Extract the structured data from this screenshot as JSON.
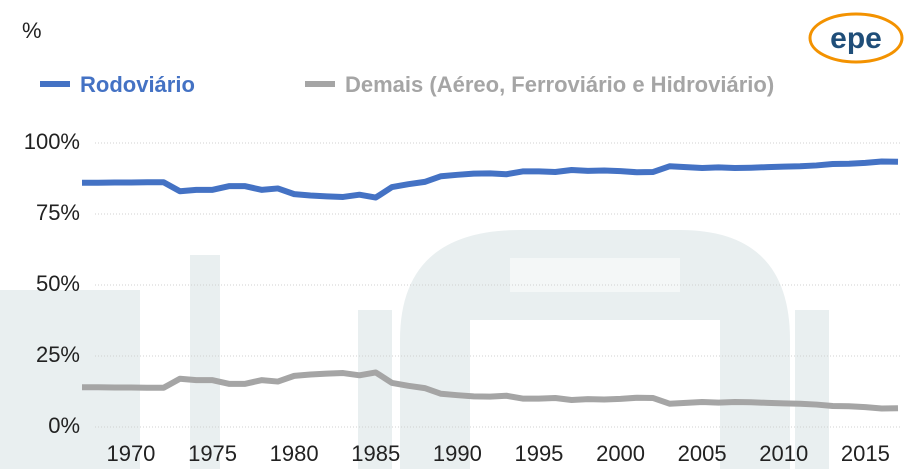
{
  "chart_data": {
    "type": "line",
    "y_unit": "%",
    "logo": "epe",
    "x": [
      1967,
      1968,
      1969,
      1970,
      1971,
      1972,
      1973,
      1974,
      1975,
      1976,
      1977,
      1978,
      1979,
      1980,
      1981,
      1982,
      1983,
      1984,
      1985,
      1986,
      1987,
      1988,
      1989,
      1990,
      1991,
      1992,
      1993,
      1994,
      1995,
      1996,
      1997,
      1998,
      1999,
      2000,
      2001,
      2002,
      2003,
      2004,
      2005,
      2006,
      2007,
      2008,
      2009,
      2010,
      2011,
      2012,
      2013,
      2014,
      2015,
      2016,
      2017
    ],
    "series": [
      {
        "name": "Rodoviário",
        "color": "#4472c4",
        "values": [
          86,
          86,
          86.1,
          86.1,
          86.2,
          86.2,
          83,
          83.5,
          83.5,
          84.8,
          84.8,
          83.5,
          84,
          82,
          81.5,
          81.2,
          81,
          81.8,
          80.8,
          84.5,
          85.5,
          86.3,
          88.3,
          88.8,
          89.2,
          89.3,
          89,
          90,
          90,
          89.8,
          90.5,
          90.2,
          90.3,
          90.1,
          89.7,
          89.8,
          91.8,
          91.5,
          91.2,
          91.4,
          91.2,
          91.3,
          91.5,
          91.7,
          91.8,
          92.1,
          92.6,
          92.7,
          93,
          93.5,
          93.4
        ]
      },
      {
        "name": "Demais (Aéreo, Ferroviário e Hidroviário)",
        "color": "#a5a5a5",
        "values": [
          14,
          14,
          13.9,
          13.9,
          13.8,
          13.8,
          17,
          16.5,
          16.5,
          15.2,
          15.2,
          16.5,
          16,
          18,
          18.5,
          18.8,
          19,
          18.2,
          19.2,
          15.5,
          14.5,
          13.7,
          11.7,
          11.2,
          10.8,
          10.7,
          11,
          10,
          10,
          10.2,
          9.5,
          9.8,
          9.7,
          9.9,
          10.3,
          10.2,
          8.2,
          8.5,
          8.8,
          8.6,
          8.8,
          8.7,
          8.5,
          8.3,
          8.2,
          7.9,
          7.4,
          7.3,
          7,
          6.5,
          6.6
        ]
      }
    ],
    "xlim": [
      1967,
      2017
    ],
    "xticks": [
      1970,
      1975,
      1980,
      1985,
      1990,
      1995,
      2000,
      2005,
      2010,
      2015
    ],
    "ylim": [
      0,
      100
    ],
    "yticks": [
      {
        "value": 0,
        "label": "0%"
      },
      {
        "value": 25,
        "label": "25%"
      },
      {
        "value": 50,
        "label": "50%"
      },
      {
        "value": 75,
        "label": "75%"
      },
      {
        "value": 100,
        "label": "100%"
      }
    ],
    "grid": true,
    "legend": "top"
  }
}
